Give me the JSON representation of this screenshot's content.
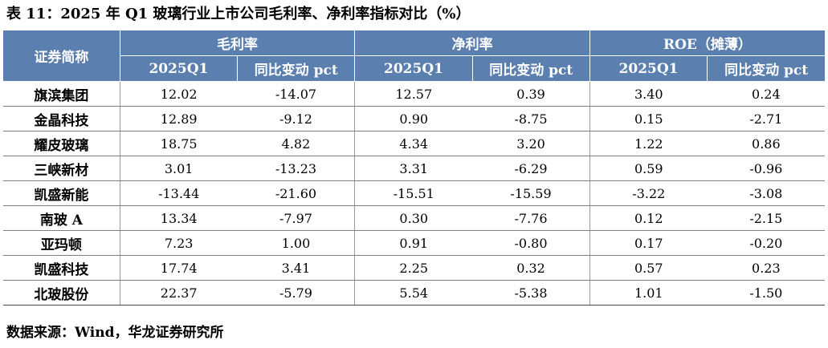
{
  "caption": "表 11：2025 年 Q1 玻璃行业上市公司毛利率、净利率指标对比（%）",
  "header": {
    "name_col": "证券简称",
    "groups": [
      "毛利率",
      "净利率",
      "ROE（摊薄）"
    ],
    "sub": [
      "2025Q1",
      "同比变动 pct",
      "2025Q1",
      "同比变动 pct",
      "2025Q1",
      "同比变动 pct"
    ]
  },
  "rows": [
    {
      "name": "旗滨集团",
      "values": [
        "12.02",
        "-14.07",
        "12.57",
        "0.39",
        "3.40",
        "0.24"
      ]
    },
    {
      "name": "金晶科技",
      "values": [
        "12.89",
        "-9.12",
        "0.90",
        "-8.75",
        "0.15",
        "-2.71"
      ]
    },
    {
      "name": "耀皮玻璃",
      "values": [
        "18.75",
        "4.82",
        "4.34",
        "3.20",
        "1.22",
        "0.86"
      ]
    },
    {
      "name": "三峡新材",
      "values": [
        "3.01",
        "-13.23",
        "3.31",
        "-6.29",
        "0.59",
        "-0.96"
      ]
    },
    {
      "name": "凯盛新能",
      "values": [
        "-13.44",
        "-21.60",
        "-15.51",
        "-15.59",
        "-3.22",
        "-3.08"
      ]
    },
    {
      "name": "南玻 A",
      "values": [
        "13.34",
        "-7.97",
        "0.30",
        "-7.76",
        "0.12",
        "-2.15"
      ]
    },
    {
      "name": "亚玛顿",
      "values": [
        "7.23",
        "1.00",
        "0.91",
        "-0.80",
        "0.17",
        "-0.20"
      ]
    },
    {
      "name": "凯盛科技",
      "values": [
        "17.74",
        "3.41",
        "2.25",
        "0.32",
        "0.57",
        "0.23"
      ]
    },
    {
      "name": "北玻股份",
      "values": [
        "22.37",
        "-5.79",
        "5.54",
        "-5.38",
        "1.01",
        "-1.50"
      ]
    }
  ],
  "source": "数据来源：Wind，华龙证券研究所"
}
